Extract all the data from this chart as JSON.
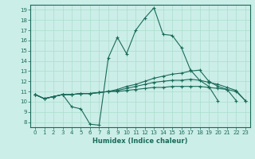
{
  "title": "",
  "xlabel": "Humidex (Indice chaleur)",
  "ylabel": "",
  "background_color": "#cceee8",
  "line_color": "#1a6b5a",
  "grid_color": "#aaddcc",
  "xlim": [
    -0.5,
    23.5
  ],
  "ylim": [
    7.5,
    19.5
  ],
  "xticks": [
    0,
    1,
    2,
    3,
    4,
    5,
    6,
    7,
    8,
    9,
    10,
    11,
    12,
    13,
    14,
    15,
    16,
    17,
    18,
    19,
    20,
    21,
    22,
    23
  ],
  "yticks": [
    8,
    9,
    10,
    11,
    12,
    13,
    14,
    15,
    16,
    17,
    18,
    19
  ],
  "lines": [
    {
      "x": [
        0,
        1,
        2,
        3,
        4,
        5,
        6,
        7,
        8,
        9,
        10,
        11,
        12,
        13,
        14,
        15,
        16,
        17,
        18,
        19,
        20
      ],
      "y": [
        10.7,
        10.3,
        10.5,
        10.7,
        9.5,
        9.3,
        7.8,
        7.7,
        14.3,
        16.3,
        14.7,
        17.0,
        18.2,
        19.2,
        16.6,
        16.5,
        15.3,
        13.1,
        12.1,
        11.5,
        10.1
      ]
    },
    {
      "x": [
        0,
        1,
        2,
        3,
        4,
        5,
        6,
        7,
        8,
        9,
        10,
        11,
        12,
        13,
        14,
        15,
        16,
        17,
        18,
        19,
        20,
        21,
        22
      ],
      "y": [
        10.7,
        10.3,
        10.5,
        10.7,
        10.7,
        10.8,
        10.8,
        10.9,
        11.0,
        11.2,
        11.5,
        11.7,
        12.0,
        12.3,
        12.5,
        12.7,
        12.8,
        13.0,
        13.1,
        12.0,
        11.5,
        11.2,
        10.1
      ]
    },
    {
      "x": [
        0,
        1,
        2,
        3,
        4,
        5,
        6,
        7,
        8,
        9,
        10,
        11,
        12,
        13,
        14,
        15,
        16,
        17,
        18,
        19,
        20,
        21,
        22,
        23
      ],
      "y": [
        10.7,
        10.3,
        10.5,
        10.7,
        10.7,
        10.8,
        10.8,
        10.9,
        11.0,
        11.1,
        11.3,
        11.5,
        11.7,
        11.9,
        12.0,
        12.1,
        12.1,
        12.2,
        12.1,
        11.9,
        11.7,
        11.4,
        11.1,
        10.1
      ]
    },
    {
      "x": [
        0,
        1,
        2,
        3,
        4,
        5,
        6,
        7,
        8,
        9,
        10,
        11,
        12,
        13,
        14,
        15,
        16,
        17,
        18,
        19,
        20,
        21,
        22,
        23
      ],
      "y": [
        10.7,
        10.3,
        10.5,
        10.7,
        10.7,
        10.8,
        10.8,
        10.9,
        11.0,
        11.0,
        11.1,
        11.2,
        11.3,
        11.4,
        11.4,
        11.5,
        11.5,
        11.5,
        11.5,
        11.4,
        11.3,
        11.2,
        11.0,
        10.1
      ]
    }
  ]
}
